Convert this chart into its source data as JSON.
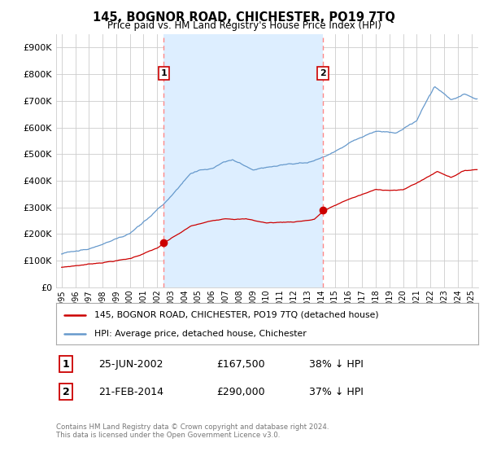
{
  "title": "145, BOGNOR ROAD, CHICHESTER, PO19 7TQ",
  "subtitle": "Price paid vs. HM Land Registry's House Price Index (HPI)",
  "ylabel_ticks": [
    "£0",
    "£100K",
    "£200K",
    "£300K",
    "£400K",
    "£500K",
    "£600K",
    "£700K",
    "£800K",
    "£900K"
  ],
  "ytick_values": [
    0,
    100000,
    200000,
    300000,
    400000,
    500000,
    600000,
    700000,
    800000,
    900000
  ],
  "ylim": [
    0,
    950000
  ],
  "xlim_start": 1994.6,
  "xlim_end": 2025.5,
  "marker1_x": 2002.48,
  "marker1_y": 167500,
  "marker1_label": "1",
  "marker1_date": "25-JUN-2002",
  "marker1_price": "£167,500",
  "marker1_hpi": "38% ↓ HPI",
  "marker2_x": 2014.13,
  "marker2_y": 290000,
  "marker2_label": "2",
  "marker2_date": "21-FEB-2014",
  "marker2_price": "£290,000",
  "marker2_hpi": "37% ↓ HPI",
  "property_line_color": "#cc0000",
  "hpi_line_color": "#6699cc",
  "shade_color": "#ddeeff",
  "vline_color": "#ff8888",
  "grid_color": "#cccccc",
  "background_color": "#ffffff",
  "legend_label_property": "145, BOGNOR ROAD, CHICHESTER, PO19 7TQ (detached house)",
  "legend_label_hpi": "HPI: Average price, detached house, Chichester",
  "footer1": "Contains HM Land Registry data © Crown copyright and database right 2024.",
  "footer2": "This data is licensed under the Open Government Licence v3.0.",
  "xtick_years": [
    1995,
    1996,
    1997,
    1998,
    1999,
    2000,
    2001,
    2002,
    2003,
    2004,
    2005,
    2006,
    2007,
    2008,
    2009,
    2010,
    2011,
    2012,
    2013,
    2014,
    2015,
    2016,
    2017,
    2018,
    2019,
    2020,
    2021,
    2022,
    2023,
    2024,
    2025
  ]
}
